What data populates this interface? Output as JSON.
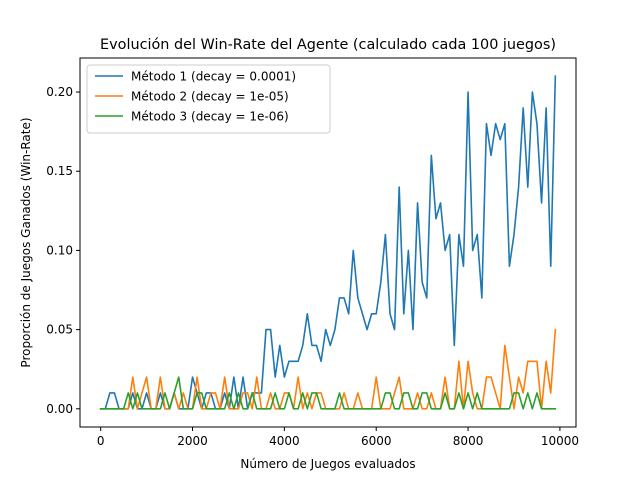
{
  "chart_data": {
    "type": "line",
    "title": "Evolución del Win-Rate del Agente (calculado cada 100 juegos)",
    "xlabel": "Número de Juegos evaluados",
    "ylabel": "Proporción de Juegos Ganados (Win-Rate)",
    "xlim": [
      -450,
      10350
    ],
    "ylim": [
      -0.0115,
      0.2215
    ],
    "xticks": [
      0,
      2000,
      4000,
      6000,
      8000,
      10000
    ],
    "xtick_labels": [
      "0",
      "2000",
      "4000",
      "6000",
      "8000",
      "10000"
    ],
    "yticks": [
      0.0,
      0.05,
      0.1,
      0.15,
      0.2
    ],
    "ytick_labels": [
      "0.00",
      "0.05",
      "0.10",
      "0.15",
      "0.20"
    ],
    "grid": false,
    "legend_position": "top-left",
    "x": [
      0,
      100,
      200,
      300,
      400,
      500,
      600,
      700,
      800,
      900,
      1000,
      1100,
      1200,
      1300,
      1400,
      1500,
      1600,
      1700,
      1800,
      1900,
      2000,
      2100,
      2200,
      2300,
      2400,
      2500,
      2600,
      2700,
      2800,
      2900,
      3000,
      3100,
      3200,
      3300,
      3400,
      3500,
      3600,
      3700,
      3800,
      3900,
      4000,
      4100,
      4200,
      4300,
      4400,
      4500,
      4600,
      4700,
      4800,
      4900,
      5000,
      5100,
      5200,
      5300,
      5400,
      5500,
      5600,
      5700,
      5800,
      5900,
      6000,
      6100,
      6200,
      6300,
      6400,
      6500,
      6600,
      6700,
      6800,
      6900,
      7000,
      7100,
      7200,
      7300,
      7400,
      7500,
      7600,
      7700,
      7800,
      7900,
      8000,
      8100,
      8200,
      8300,
      8400,
      8500,
      8600,
      8700,
      8800,
      8900,
      9000,
      9100,
      9200,
      9300,
      9400,
      9500,
      9600,
      9700,
      9800,
      9900
    ],
    "series": [
      {
        "name": "Método 1 (decay = 0.0001)",
        "color": "#1f77b4",
        "values": [
          0,
          0,
          0.01,
          0.01,
          0,
          0,
          0,
          0.01,
          0,
          0,
          0.01,
          0,
          0,
          0.01,
          0,
          0,
          0.01,
          0,
          0,
          0,
          0.02,
          0.01,
          0,
          0.01,
          0.01,
          0,
          0,
          0.01,
          0,
          0.02,
          0,
          0.02,
          0,
          0.01,
          0.01,
          0.01,
          0.05,
          0.05,
          0.02,
          0.04,
          0.02,
          0.03,
          0.03,
          0.03,
          0.04,
          0.06,
          0.04,
          0.04,
          0.03,
          0.05,
          0.04,
          0.05,
          0.07,
          0.07,
          0.06,
          0.1,
          0.07,
          0.06,
          0.05,
          0.06,
          0.06,
          0.08,
          0.11,
          0.06,
          0.05,
          0.14,
          0.06,
          0.1,
          0.05,
          0.13,
          0.08,
          0.07,
          0.16,
          0.12,
          0.13,
          0.1,
          0.11,
          0.04,
          0.11,
          0.09,
          0.2,
          0.1,
          0.11,
          0.07,
          0.18,
          0.16,
          0.18,
          0.17,
          0.18,
          0.09,
          0.11,
          0.14,
          0.19,
          0.14,
          0.2,
          0.18,
          0.13,
          0.19,
          0.09,
          0.21
        ]
      },
      {
        "name": "Método 2 (decay = 1e-05)",
        "color": "#ff7f0e",
        "values": [
          0,
          0,
          0,
          0,
          0,
          0,
          0,
          0.02,
          0,
          0.01,
          0.02,
          0,
          0,
          0.02,
          0,
          0,
          0.01,
          0,
          0.01,
          0,
          0,
          0.02,
          0,
          0,
          0.01,
          0.01,
          0,
          0.02,
          0,
          0,
          0,
          0.01,
          0.01,
          0,
          0.02,
          0,
          0,
          0.01,
          0,
          0,
          0.01,
          0.01,
          0,
          0.02,
          0,
          0.01,
          0,
          0.01,
          0.01,
          0,
          0,
          0,
          0,
          0.01,
          0,
          0,
          0.01,
          0,
          0,
          0,
          0.02,
          0,
          0,
          0,
          0.01,
          0.02,
          0,
          0,
          0,
          0.01,
          0,
          0,
          0.01,
          0,
          0,
          0.02,
          0,
          0,
          0.03,
          0,
          0.03,
          0.01,
          0,
          0,
          0.02,
          0.02,
          0.01,
          0,
          0.04,
          0.02,
          0,
          0.02,
          0.01,
          0.03,
          0.03,
          0.03,
          0,
          0.03,
          0.01,
          0.05
        ]
      },
      {
        "name": "Método 3 (decay = 1e-06)",
        "color": "#2ca02c",
        "values": [
          0,
          0,
          0,
          0,
          0,
          0,
          0.01,
          0,
          0.01,
          0,
          0,
          0,
          0,
          0,
          0.01,
          0,
          0.01,
          0.02,
          0,
          0,
          0,
          0.01,
          0.01,
          0,
          0,
          0,
          0,
          0,
          0.01,
          0,
          0.01,
          0,
          0,
          0.01,
          0,
          0,
          0,
          0,
          0.01,
          0,
          0,
          0.01,
          0,
          0,
          0.01,
          0,
          0.01,
          0.01,
          0,
          0,
          0,
          0,
          0.01,
          0,
          0,
          0,
          0,
          0,
          0,
          0,
          0,
          0,
          0.01,
          0.01,
          0,
          0,
          0.01,
          0.01,
          0,
          0,
          0.01,
          0.01,
          0,
          0,
          0,
          0.01,
          0,
          0,
          0.01,
          0,
          0.01,
          0,
          0.01,
          0,
          0,
          0,
          0,
          0,
          0,
          0,
          0.01,
          0.01,
          0,
          0.01,
          0,
          0.01,
          0,
          0,
          0,
          0
        ]
      }
    ]
  }
}
